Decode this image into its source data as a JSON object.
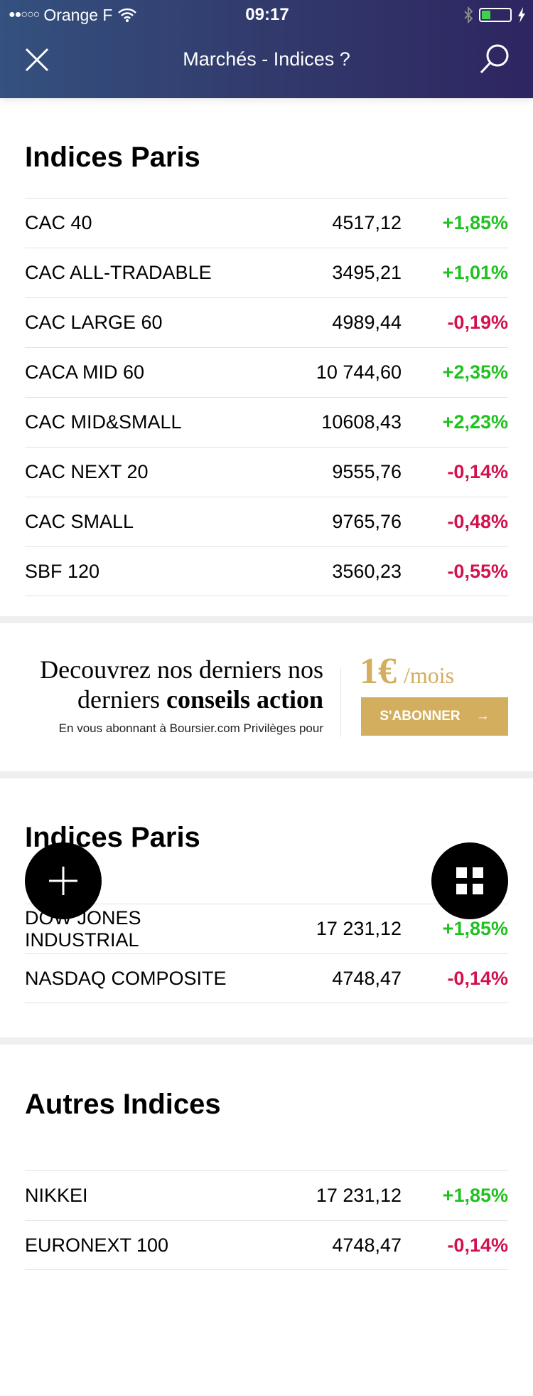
{
  "status_bar": {
    "signal": "●●○○○",
    "carrier": "Orange F",
    "time": "09:17",
    "battery_level": 0.3
  },
  "header": {
    "title": "Marchés - Indices ?"
  },
  "sections": [
    {
      "title": "Indices Paris",
      "rows": [
        {
          "name": "CAC 40",
          "value": "4517,12",
          "change": "+1,85%",
          "dir": "up"
        },
        {
          "name": "CAC ALL-TRADABLE",
          "value": "3495,21",
          "change": "+1,01%",
          "dir": "up"
        },
        {
          "name": "CAC LARGE 60",
          "value": "4989,44",
          "change": "-0,19%",
          "dir": "down"
        },
        {
          "name": "CACA MID 60",
          "value": "10 744,60",
          "change": "+2,35%",
          "dir": "up"
        },
        {
          "name": "CAC MID&SMALL",
          "value": "10608,43",
          "change": "+2,23%",
          "dir": "up"
        },
        {
          "name": "CAC NEXT 20",
          "value": "9555,76",
          "change": "-0,14%",
          "dir": "down"
        },
        {
          "name": "CAC SMALL",
          "value": "9765,76",
          "change": "-0,48%",
          "dir": "down"
        },
        {
          "name": "SBF 120",
          "value": "3560,23",
          "change": "-0,55%",
          "dir": "down"
        }
      ]
    },
    {
      "title": "Indices Paris",
      "rows": [
        {
          "name": "DOW JONES INDUSTRIAL",
          "value": "17 231,12",
          "change": "+1,85%",
          "dir": "up"
        },
        {
          "name": "NASDAQ COMPOSITE",
          "value": "4748,47",
          "change": "-0,14%",
          "dir": "down"
        }
      ]
    },
    {
      "title": "Autres Indices",
      "rows": [
        {
          "name": "NIKKEI",
          "value": "17 231,12",
          "change": "+1,85%",
          "dir": "up"
        },
        {
          "name": "EURONEXT 100",
          "value": "4748,47",
          "change": "-0,14%",
          "dir": "down"
        }
      ]
    }
  ],
  "ad": {
    "line1": "Decouvrez nos derniers nos",
    "line2_prefix": "derniers ",
    "line2_bold": "conseils action",
    "subtext": "En vous abonnant à Boursier.com Privilèges pour",
    "price": "1€",
    "per": "/mois",
    "button": "S'ABONNER",
    "button_arrow": "→"
  },
  "colors": {
    "up": "#1fc21f",
    "down": "#d3114d",
    "gold": "#d3ae5f",
    "header_start": "#34517f",
    "header_end": "#2e2561"
  }
}
